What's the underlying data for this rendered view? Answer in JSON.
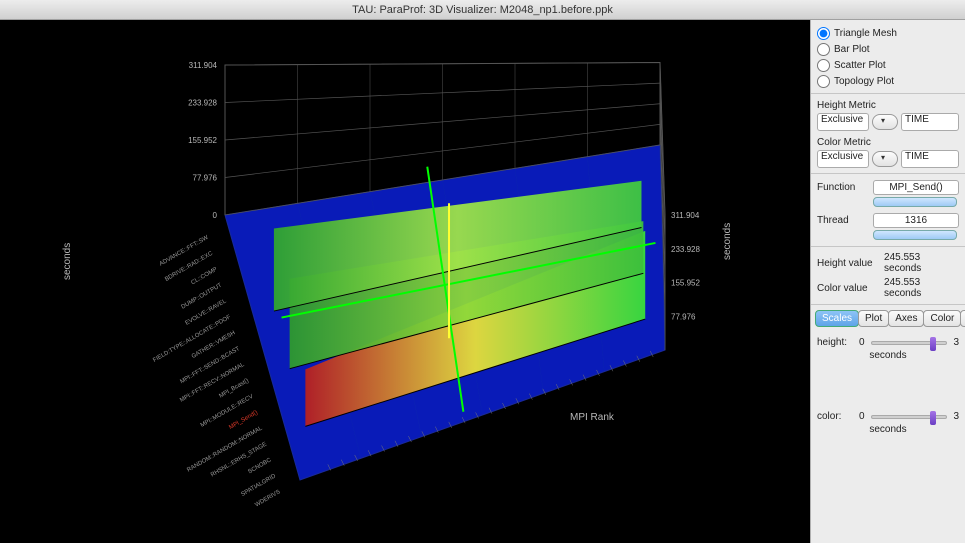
{
  "window": {
    "title": "TAU: ParaProf: 3D Visualizer: M2048_np1.before.ppk"
  },
  "plot_types": {
    "options": [
      "Triangle Mesh",
      "Bar Plot",
      "Scatter Plot",
      "Topology Plot"
    ],
    "selected": "Triangle Mesh"
  },
  "height_metric": {
    "label": "Height Metric",
    "mode": "Exclusive",
    "metric": "TIME"
  },
  "color_metric": {
    "label": "Color Metric",
    "mode": "Exclusive",
    "metric": "TIME"
  },
  "function_row": {
    "label": "Function",
    "value": "MPI_Send()"
  },
  "thread_row": {
    "label": "Thread",
    "value": "1316"
  },
  "height_value": {
    "label": "Height value",
    "value": "245.553 seconds"
  },
  "color_value": {
    "label": "Color value",
    "value": "245.553 seconds"
  },
  "tabs": [
    "Scales",
    "Plot",
    "Axes",
    "Color",
    "R"
  ],
  "active_tab": "Scales",
  "height_scale": {
    "label": "height:",
    "min": "0",
    "max": "3",
    "unit": "seconds",
    "pos": 0.78
  },
  "color_scale": {
    "label": "color:",
    "min": "0",
    "max": "3",
    "unit": "seconds",
    "pos": 0.78
  },
  "chart": {
    "background": "#000000",
    "grid_color": "#555555",
    "axis_left_label": "seconds",
    "axis_right_label": "seconds",
    "x_label": "MPI Rank",
    "y_ticks_left": [
      "311.904",
      "233.928",
      "155.952",
      "77.976",
      "0"
    ],
    "y_ticks_right": [
      "311.904",
      "233.928",
      "155.952",
      "77.976"
    ],
    "function_labels": [
      "ADVANCE::FFT::SW",
      "BDRIVE::RAD::EXC",
      "CL::COMP",
      "DUMP::OUTPUT",
      "EVOLVE::RAVEL",
      "FIELD:TYPE::ALLOCATE::PDOF",
      "GATHER::VMESH",
      "MPI::FFT::SEND::BCAST",
      "MPI::FFT::RECV::NORMAL",
      "MPI_Bcast()",
      "MPI::MODULE::RECV",
      "MPI_Send()",
      "RANDOM::RANDOM::NORMAL",
      "RHSNL::ERHS_STAGE",
      "SCNOBC",
      "SPATIALGRID",
      "WDERIVS"
    ],
    "highlight_func_index": 11,
    "floor_color": "#0a1ecc",
    "walls": [
      {
        "colors": [
          "#b82020",
          "#e8e03a",
          "#3adf3a"
        ],
        "near_h": 0.38,
        "far_h": 0.98,
        "z_off": 0
      },
      {
        "colors": [
          "#2e9a2e",
          "#8ed83a",
          "#3cbf3c"
        ],
        "near_h": 0.6,
        "far_h": 0.58,
        "z_off": 60
      },
      {
        "colors": [
          "#30a530",
          "#9fe24a",
          "#40c840"
        ],
        "near_h": 0.55,
        "far_h": 0.52,
        "z_off": 105
      }
    ],
    "crosshair_color_h": "#00ff00",
    "crosshair_color_v": "#ffff33"
  }
}
